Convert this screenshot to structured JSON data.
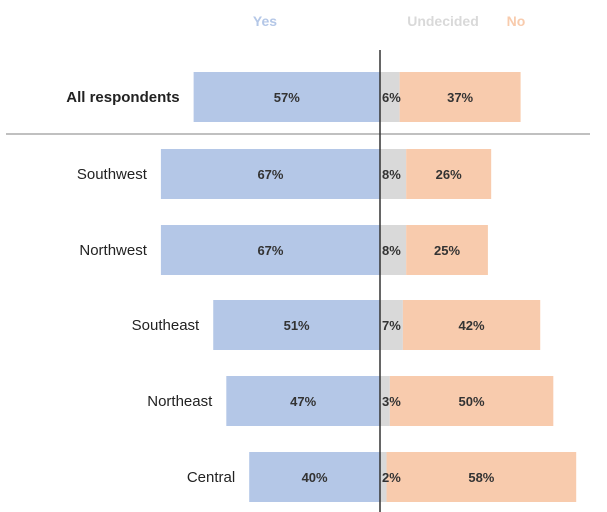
{
  "chart_data": {
    "type": "bar",
    "layout": "diverging-stacked-horizontal",
    "legend": [
      "Yes",
      "Undecided",
      "No"
    ],
    "legend_position": "top",
    "colors": {
      "Yes": "#b4c7e7",
      "Undecided": "#d9d9d9",
      "No": "#f8cbad"
    },
    "summary_category": "All respondents",
    "categories": [
      "All respondents",
      "Southwest",
      "Northwest",
      "Southeast",
      "Northeast",
      "Central"
    ],
    "series": [
      {
        "name": "Yes",
        "values": [
          57,
          67,
          67,
          51,
          47,
          40
        ]
      },
      {
        "name": "Undecided",
        "values": [
          6,
          8,
          8,
          7,
          3,
          2
        ]
      },
      {
        "name": "No",
        "values": [
          37,
          26,
          25,
          42,
          50,
          58
        ]
      }
    ],
    "value_labels": [
      [
        "57%",
        "6%",
        "37%"
      ],
      [
        "67%",
        "8%",
        "26%"
      ],
      [
        "67%",
        "8%",
        "25%"
      ],
      [
        "51%",
        "7%",
        "42%"
      ],
      [
        "47%",
        "3%",
        "50%"
      ],
      [
        "40%",
        "2%",
        "58%"
      ]
    ],
    "title": "",
    "xlabel": "",
    "ylabel": "",
    "grid": false
  }
}
